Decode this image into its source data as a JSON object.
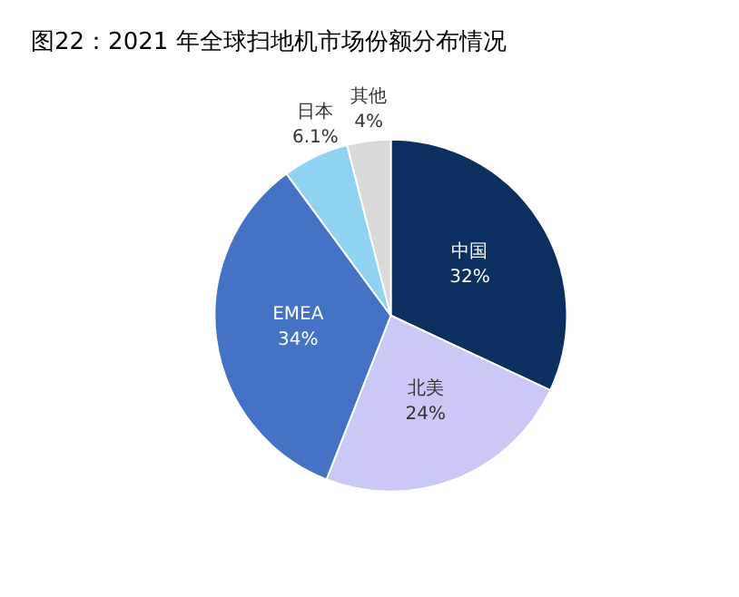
{
  "chart_data": {
    "type": "pie",
    "title": "图22：2021 年全球扫地机市场份额分布情况",
    "categories": [
      "中国",
      "北美",
      "EMEA",
      "日本",
      "其他"
    ],
    "values": [
      32,
      24,
      34,
      6.1,
      4
    ],
    "colors": [
      "#0b2f5f",
      "#c9c8f7",
      "#4472c4",
      "#8fd3f2",
      "#d9d9d9"
    ],
    "value_labels": [
      "32%",
      "24%",
      "34%",
      "6.1%",
      "4%"
    ],
    "legend": false
  }
}
